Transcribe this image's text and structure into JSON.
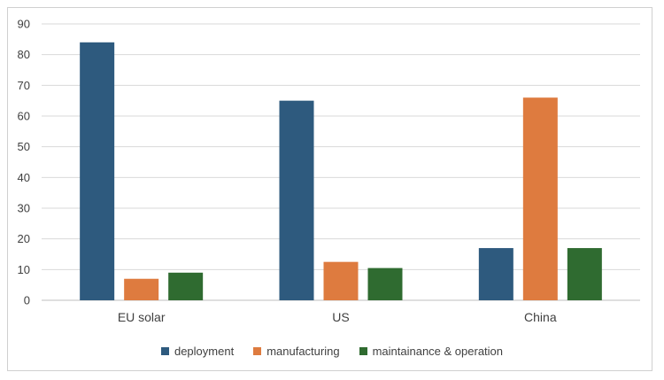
{
  "chart_data": {
    "type": "bar",
    "categories": [
      "EU solar",
      "US",
      "China"
    ],
    "series": [
      {
        "name": "deployment",
        "values": [
          84,
          65,
          17
        ],
        "color": "#2e5a7e"
      },
      {
        "name": "manufacturing",
        "values": [
          7,
          12.5,
          66
        ],
        "color": "#de7b3f"
      },
      {
        "name": "maintainance & operation",
        "values": [
          9,
          10.5,
          17
        ],
        "color": "#2f6b30"
      }
    ],
    "title": "",
    "xlabel": "",
    "ylabel": "",
    "ylim": [
      0,
      90
    ],
    "yticks": [
      0,
      10,
      20,
      30,
      40,
      50,
      60,
      70,
      80,
      90
    ],
    "grid": "horizontal",
    "legend_position": "bottom",
    "gridline_color": "#d9d9d9",
    "axis_text_color": "#404040"
  }
}
